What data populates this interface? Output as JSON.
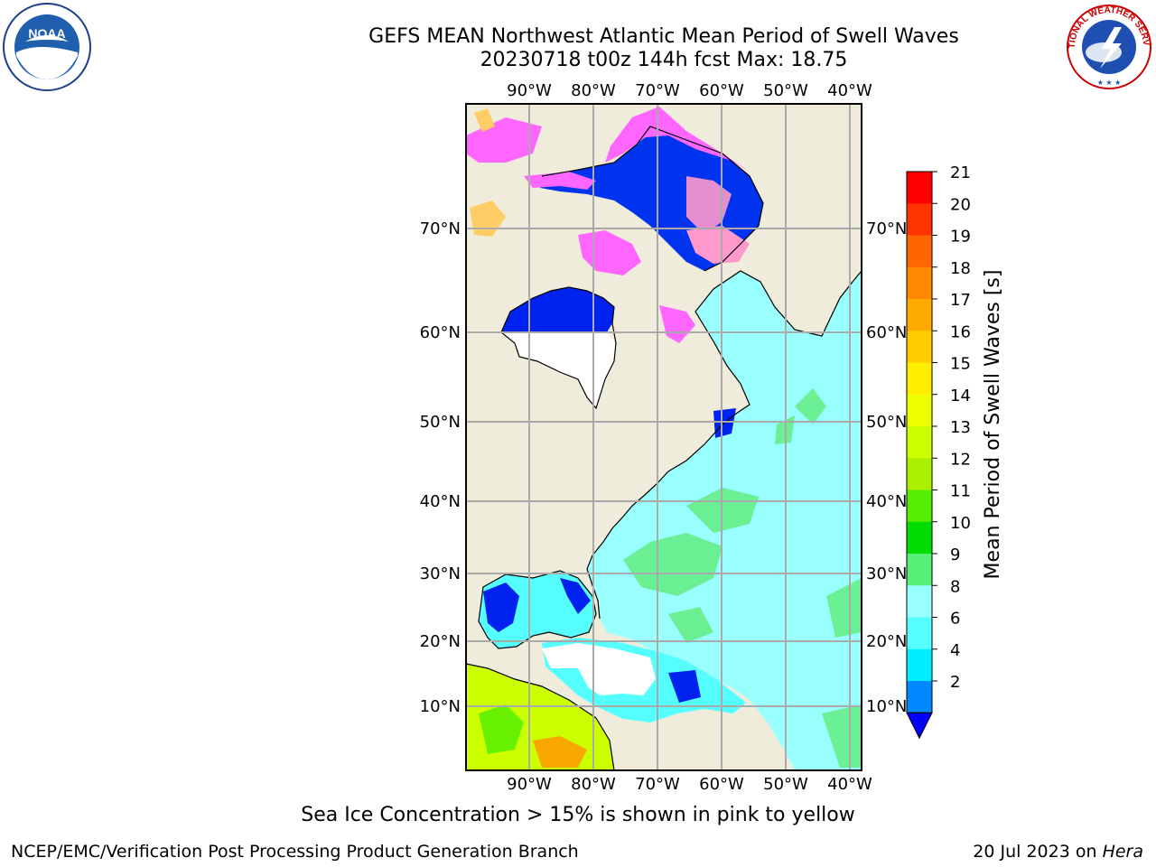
{
  "title_line1": "GEFS MEAN Northwest Atlantic Mean Period of Swell Waves",
  "title_line2": "20230718 t00z 144h fcst   Max: 18.75",
  "map": {
    "lon_labels": [
      "90°W",
      "80°W",
      "70°W",
      "60°W",
      "50°W",
      "40°W"
    ],
    "lat_labels": [
      "70°N",
      "60°N",
      "50°N",
      "40°N",
      "30°N",
      "20°N",
      "10°N"
    ],
    "land_color": "#efecdc",
    "ocean_color": "#99ffff",
    "ice_colors": [
      "#ff66ff",
      "#ff99cc",
      "#ffcc66"
    ]
  },
  "colorbar": {
    "label": "Mean Period of Swell Waves [s]",
    "ticks": [
      "21",
      "20",
      "19",
      "18",
      "17",
      "16",
      "15",
      "14",
      "13",
      "12",
      "11",
      "10",
      "9",
      "8",
      "6",
      "4",
      "2"
    ],
    "colors": [
      "#ff0000",
      "#ff3300",
      "#ff6600",
      "#ff8800",
      "#ffaa00",
      "#ffcc00",
      "#ffee00",
      "#eeff00",
      "#ccff00",
      "#aaee00",
      "#55ee00",
      "#00dd00",
      "#55ee77",
      "#99ffff",
      "#55ffff",
      "#00eeff",
      "#0088ff"
    ],
    "under_color": "#0000ff"
  },
  "caption": "Sea Ice Concentration > 15% is shown in pink to yellow",
  "footer": {
    "left": "NCEP/EMC/Verification Post Processing Product Generation Branch",
    "right_prefix": "20 Jul 2023 on ",
    "right_machine": "Hera"
  },
  "logos": {
    "left": "NOAA",
    "right": "NATIONAL WEATHER SERVICE"
  }
}
